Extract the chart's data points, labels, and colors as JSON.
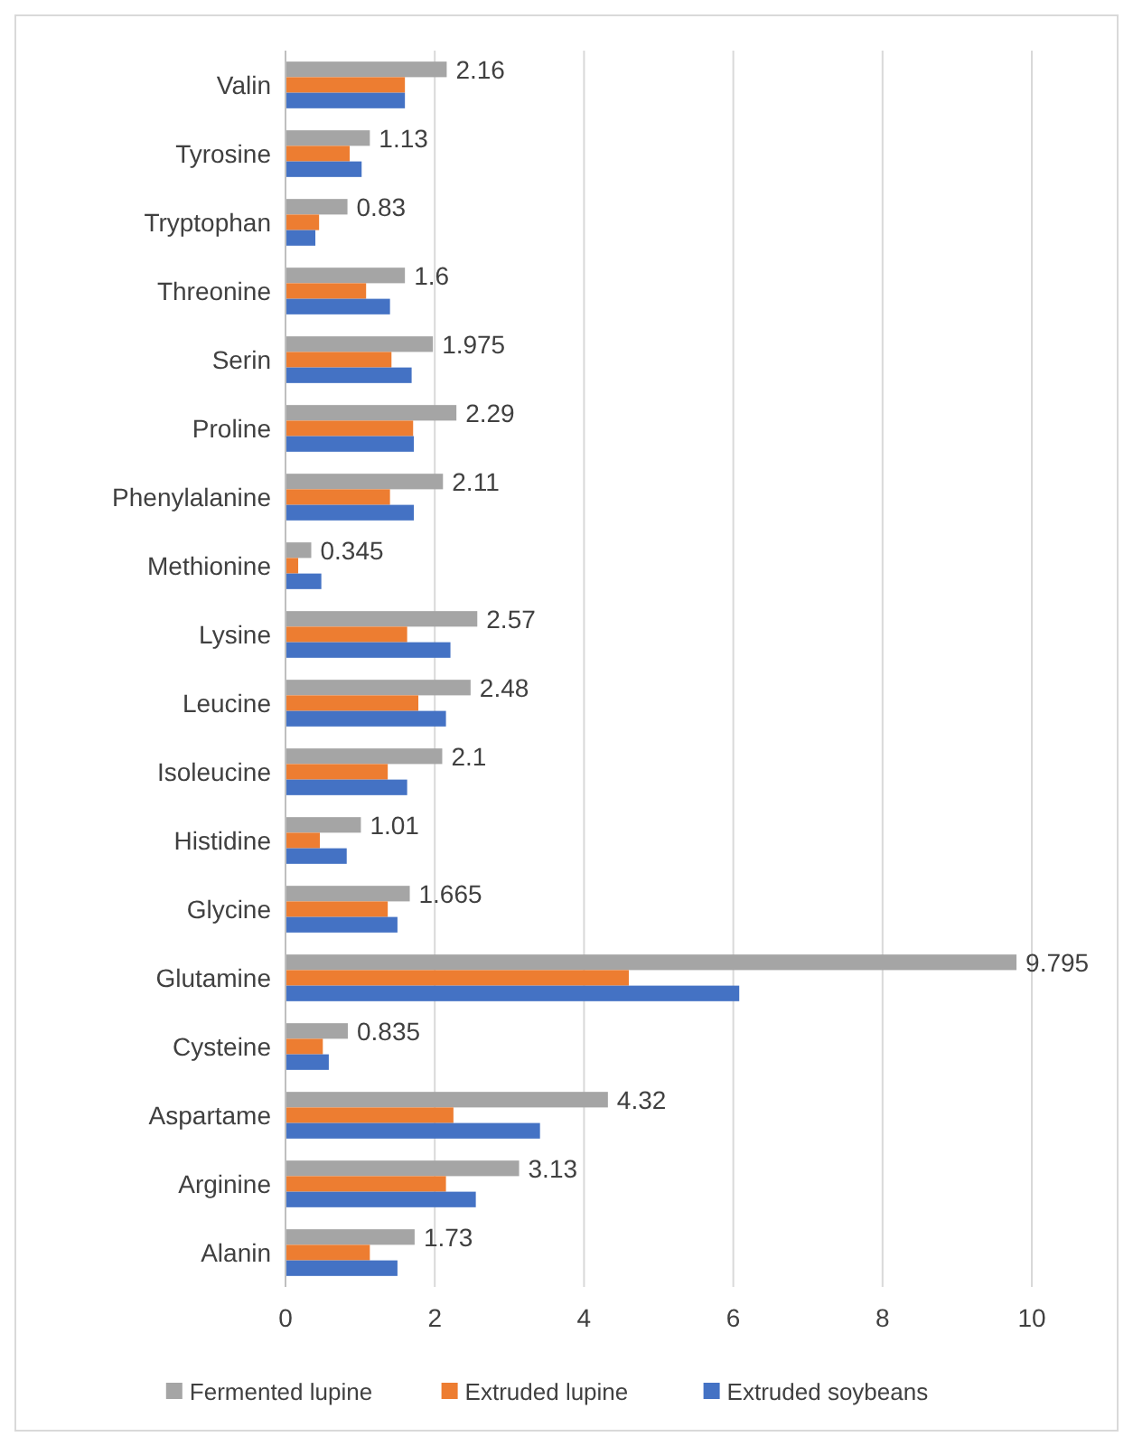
{
  "chart_data": {
    "type": "bar",
    "orientation": "horizontal",
    "categories": [
      "Valin",
      "Tyrosine",
      "Tryptophan",
      "Threonine",
      "Serin",
      "Proline",
      "Phenylalanine",
      "Methionine",
      "Lysine",
      "Leucine",
      "Isoleucine",
      "Histidine",
      "Glycine",
      "Glutamine",
      "Cysteine",
      "Aspartame",
      "Arginine",
      "Alanin"
    ],
    "series": [
      {
        "name": "Fermented lupine",
        "color": "#a5a5a5",
        "values": [
          2.16,
          1.13,
          0.83,
          1.6,
          1.975,
          2.29,
          2.11,
          0.345,
          2.57,
          2.48,
          2.1,
          1.01,
          1.665,
          9.795,
          0.835,
          4.32,
          3.13,
          1.73
        ],
        "value_labels": [
          "2.16",
          "1.13",
          "0.83",
          "1.6",
          "1.975",
          "2.29",
          "2.11",
          "0.345",
          "2.57",
          "2.48",
          "2.1",
          "1.01",
          "1.665",
          "9.795",
          "0.835",
          "4.32",
          "3.13",
          "1.73"
        ]
      },
      {
        "name": "Extruded lupine",
        "color": "#ed7d31",
        "values": [
          1.6,
          0.86,
          0.45,
          1.08,
          1.42,
          1.71,
          1.4,
          0.17,
          1.63,
          1.78,
          1.37,
          0.46,
          1.37,
          4.6,
          0.5,
          2.25,
          2.15,
          1.13
        ]
      },
      {
        "name": "Extruded soybeans",
        "color": "#4472c4",
        "values": [
          1.6,
          1.02,
          0.4,
          1.4,
          1.69,
          1.72,
          1.72,
          0.48,
          2.21,
          2.15,
          1.63,
          0.82,
          1.5,
          6.08,
          0.58,
          3.41,
          2.55,
          1.5
        ]
      }
    ],
    "xlim": [
      0,
      10
    ],
    "xticks": [
      0,
      2,
      4,
      6,
      8,
      10
    ],
    "grid": "x",
    "legend": "bottom"
  }
}
